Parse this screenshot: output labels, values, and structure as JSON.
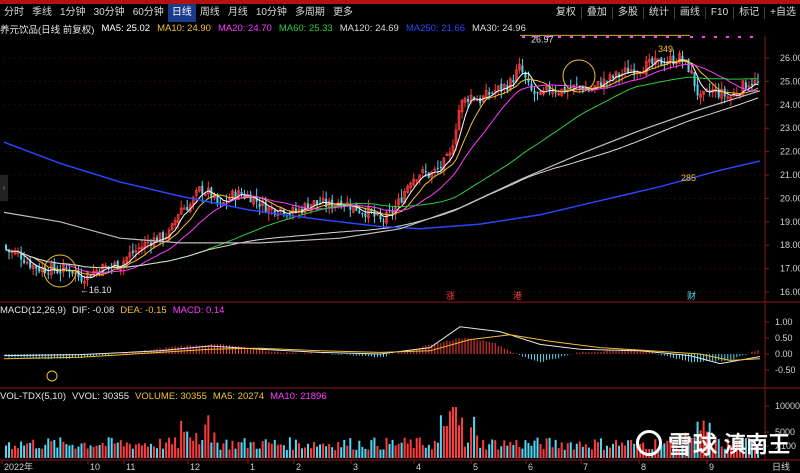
{
  "toolbar": {
    "periods": [
      "分时",
      "季线",
      "1分钟",
      "30分钟",
      "60分钟",
      "日线",
      "周线",
      "月线",
      "10分钟",
      "多周期",
      "更多"
    ],
    "active_period": "日线",
    "right_buttons": [
      "复权",
      "叠加",
      "多股",
      "统计",
      "画线",
      "F10",
      "标记",
      "+自选"
    ]
  },
  "main_info": {
    "stock": "养元饮品(日线 前复权)",
    "ma5": "MA5: 25.02",
    "ma10": "MA10: 24.90",
    "ma20": "MA20: 24.70",
    "ma60": "MA60: 25.33",
    "ma120": "MA120: 24.69",
    "ma250": "MA250: 21.66",
    "ma30": "MA30: 24.96"
  },
  "colors": {
    "up": "#ff3c3c",
    "down": "#54d6f2",
    "ma5": "#ffffff",
    "ma10": "#f2c12e",
    "ma20": "#ff3cff",
    "ma60": "#2ecc40",
    "ma120": "#d9d9d9",
    "ma250": "#2846ff",
    "ma30": "#d9d9d9"
  },
  "annotations": {
    "high": "26.97",
    "low": "16.10",
    "mark_349": "349",
    "mark_285": "285",
    "event_zhang": "涨",
    "event_gang": "港",
    "event_cai": "财"
  },
  "price_axis": [
    "26.00",
    "25.00",
    "24.00",
    "23.00",
    "22.00",
    "21.00",
    "20.00",
    "19.00",
    "18.00",
    "17.00",
    "16.00"
  ],
  "macd_info": {
    "name": "MACD(12,26,9)",
    "dif": "DIF: -0.08",
    "dea": "DEA: -0.15",
    "macd": "MACD: 0.14"
  },
  "macd_axis": [
    "1.00",
    "0.50",
    "0.00",
    "-0.50"
  ],
  "vol_info": {
    "name": "VOL-TDX(5,10)",
    "vvol": "VVOL: 30355",
    "volume": "VOLUME: 30355",
    "ma5": "MA5: 20274",
    "ma10": "MA10: 21896"
  },
  "vol_axis": [
    "10000",
    "5000",
    "X100"
  ],
  "time_axis": [
    "2022年",
    "10",
    "11",
    "12",
    "1",
    "2",
    "3",
    "4",
    "5",
    "6",
    "7",
    "8",
    "9"
  ],
  "bottom_right": "日线",
  "watermark": {
    "platform": "雪球",
    "author": "滇南王"
  }
}
